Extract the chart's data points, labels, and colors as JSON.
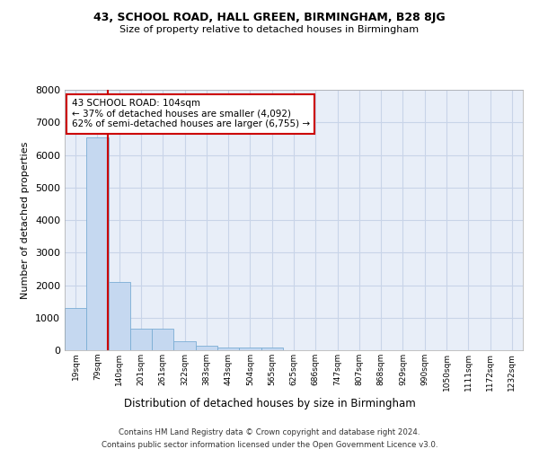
{
  "title1": "43, SCHOOL ROAD, HALL GREEN, BIRMINGHAM, B28 8JG",
  "title2": "Size of property relative to detached houses in Birmingham",
  "xlabel": "Distribution of detached houses by size in Birmingham",
  "ylabel": "Number of detached properties",
  "categories": [
    "19sqm",
    "79sqm",
    "140sqm",
    "201sqm",
    "261sqm",
    "322sqm",
    "383sqm",
    "443sqm",
    "504sqm",
    "565sqm",
    "625sqm",
    "686sqm",
    "747sqm",
    "807sqm",
    "868sqm",
    "929sqm",
    "990sqm",
    "1050sqm",
    "1111sqm",
    "1172sqm",
    "1232sqm"
  ],
  "values": [
    1300,
    6550,
    2100,
    650,
    650,
    270,
    130,
    90,
    80,
    75,
    0,
    0,
    0,
    0,
    0,
    0,
    0,
    0,
    0,
    0,
    0
  ],
  "bar_color": "#c5d8f0",
  "bar_edgecolor": "#7aadd4",
  "grid_color": "#c8d4e8",
  "bg_color": "#e8eef8",
  "vline_color": "#cc0000",
  "annotation_text": "43 SCHOOL ROAD: 104sqm\n← 37% of detached houses are smaller (4,092)\n62% of semi-detached houses are larger (6,755) →",
  "annotation_box_color": "#cc0000",
  "ylim": [
    0,
    8000
  ],
  "yticks": [
    0,
    1000,
    2000,
    3000,
    4000,
    5000,
    6000,
    7000,
    8000
  ],
  "footer1": "Contains HM Land Registry data © Crown copyright and database right 2024.",
  "footer2": "Contains public sector information licensed under the Open Government Licence v3.0."
}
